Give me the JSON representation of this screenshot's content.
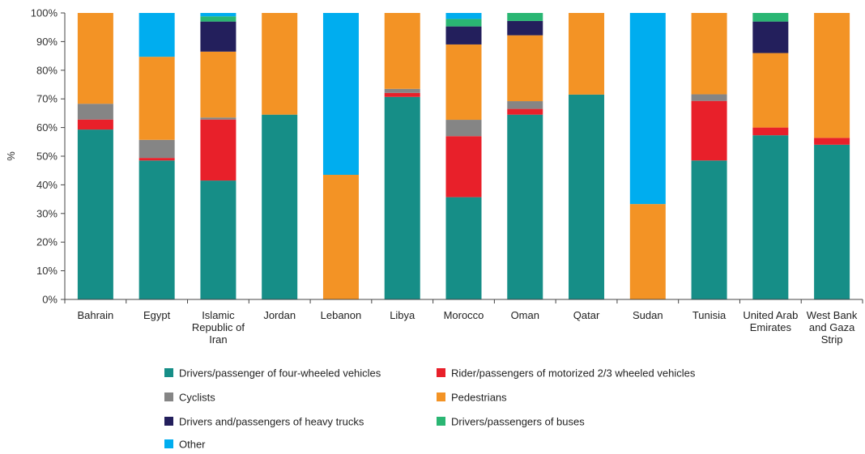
{
  "chart_data": {
    "type": "bar",
    "stacked": true,
    "ylabel": "%",
    "ylim": [
      0,
      100
    ],
    "yticks": [
      "0%",
      "10%",
      "20%",
      "30%",
      "40%",
      "50%",
      "60%",
      "70%",
      "80%",
      "90%",
      "100%"
    ],
    "grid": false,
    "legend_position": "bottom",
    "categories": [
      [
        "Bahrain"
      ],
      [
        "Egypt"
      ],
      [
        "Islamic",
        "Republic of",
        "Iran"
      ],
      [
        "Jordan"
      ],
      [
        "Lebanon"
      ],
      [
        "Libya"
      ],
      [
        "Morocco"
      ],
      [
        "Oman"
      ],
      [
        "Qatar"
      ],
      [
        "Sudan"
      ],
      [
        "Tunisia"
      ],
      [
        "United Arab",
        "Emirates"
      ],
      [
        "West Bank",
        "and Gaza",
        "Strip"
      ]
    ],
    "series": [
      {
        "name": "Drivers/passenger of four-wheeled vehicles",
        "color": "#168e87",
        "values": [
          59.3,
          48.5,
          41.5,
          64.5,
          0,
          70.7,
          35.7,
          64.5,
          71.5,
          0,
          48.5,
          57.3,
          54.0
        ]
      },
      {
        "name": "Rider/passengers of motorized 2/3 wheeled vehicles",
        "color": "#e8202a",
        "values": [
          3.5,
          0.9,
          21.3,
          0,
          0,
          1.4,
          21.3,
          2.0,
          0,
          0,
          20.8,
          2.7,
          2.4
        ]
      },
      {
        "name": "Cyclists",
        "color": "#858585",
        "values": [
          5.5,
          6.3,
          0.7,
          0,
          0,
          1.4,
          5.7,
          2.7,
          0,
          0,
          2.3,
          0,
          0
        ]
      },
      {
        "name": "Pedestrians",
        "color": "#f39325",
        "values": [
          31.7,
          29.0,
          23.0,
          35.5,
          43.5,
          26.5,
          26.3,
          23.0,
          28.5,
          33.3,
          28.4,
          26.0,
          43.6
        ]
      },
      {
        "name": "Drivers and/passengers of heavy trucks",
        "color": "#231f5c",
        "values": [
          0,
          0,
          10.5,
          0,
          0,
          0,
          6.3,
          5.0,
          0,
          0,
          0,
          11.0,
          0
        ]
      },
      {
        "name": "Drivers/passengers of buses",
        "color": "#2ab673",
        "values": [
          0,
          0,
          1.8,
          0,
          0,
          0,
          2.6,
          2.8,
          0,
          0,
          0,
          3.0,
          0
        ]
      },
      {
        "name": "Other",
        "color": "#00adef",
        "values": [
          0,
          15.3,
          1.2,
          0,
          56.5,
          0,
          2.1,
          0,
          0,
          66.7,
          0,
          0,
          0
        ]
      }
    ]
  }
}
